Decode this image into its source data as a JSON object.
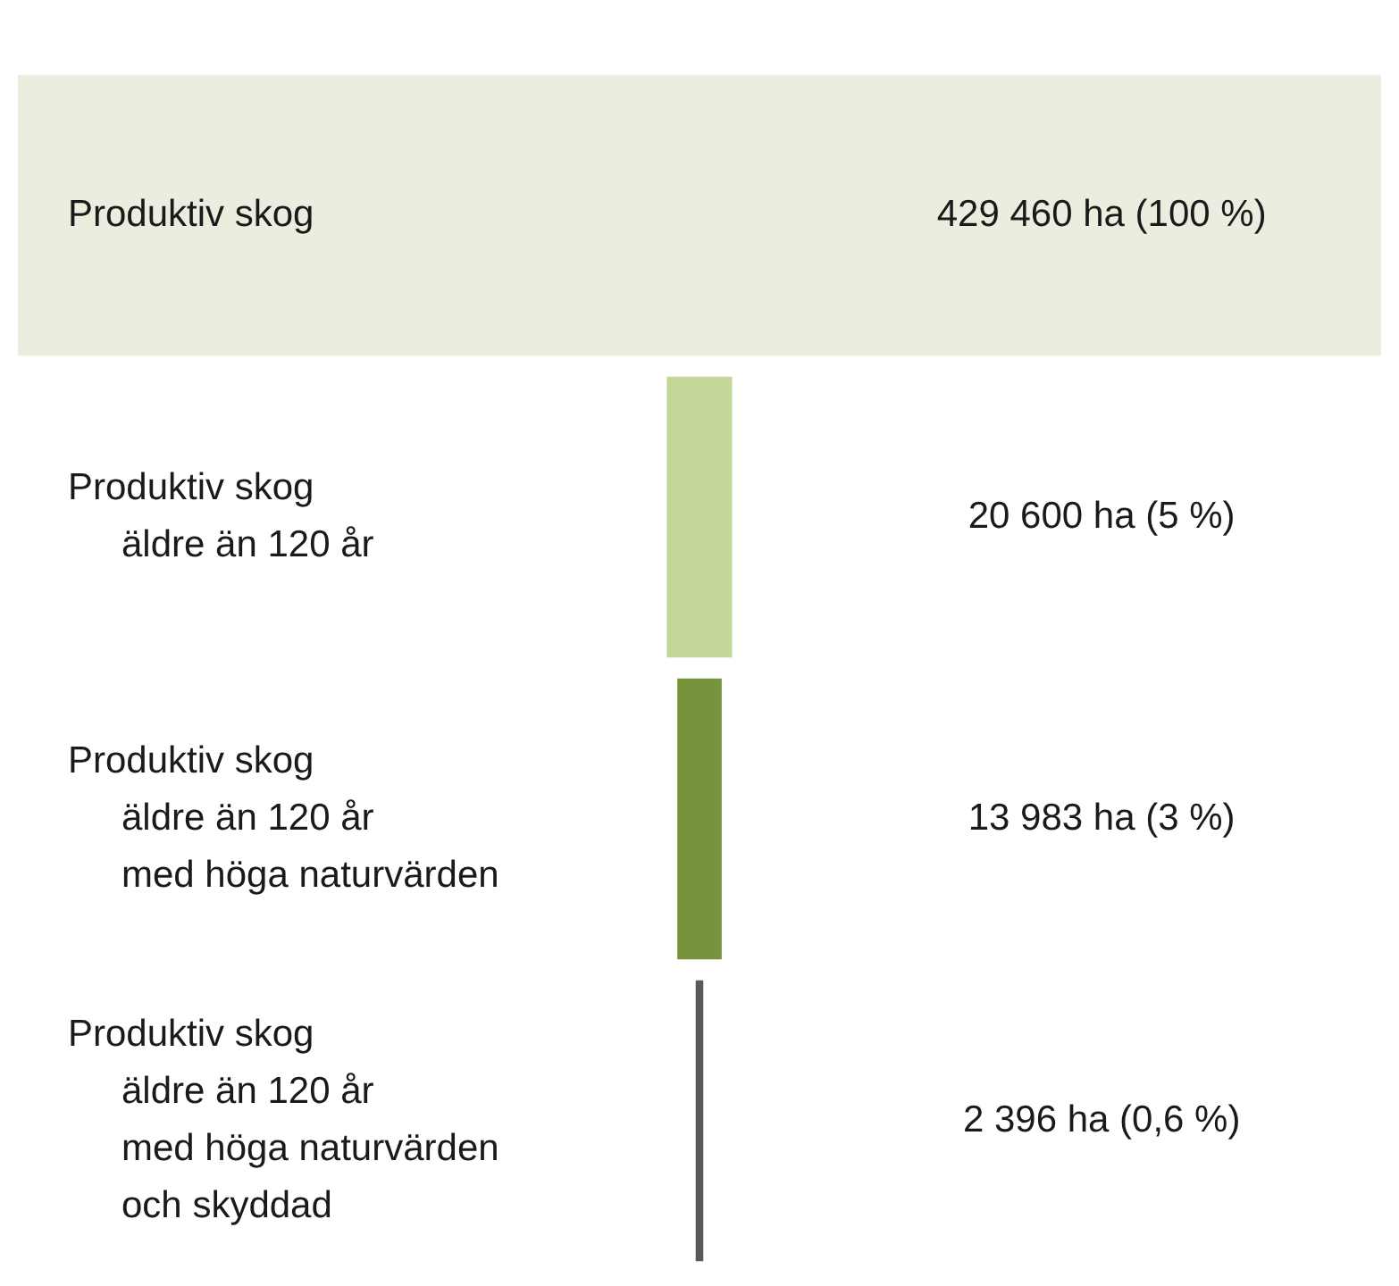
{
  "chart_data": {
    "type": "other",
    "categories": [
      "Produktiv skog",
      "Produktiv skog\näldre än 120 år",
      "Produktiv skog\näldre än 120 år\nmed höga naturvärden",
      "Produktiv skog\näldre än 120 år\nmed höga naturvärden\noch skyddad"
    ],
    "values": [
      429460,
      20600,
      13983,
      2396
    ],
    "value_labels": [
      "429 460 ha (100 %)",
      "20 600 ha (5 %)",
      "13 983 ha (3 %)",
      "2 396 ha (0,6 %)"
    ],
    "colors": [
      "#ebeedf",
      "#c4d79b",
      "#77933c",
      "#595959"
    ]
  }
}
